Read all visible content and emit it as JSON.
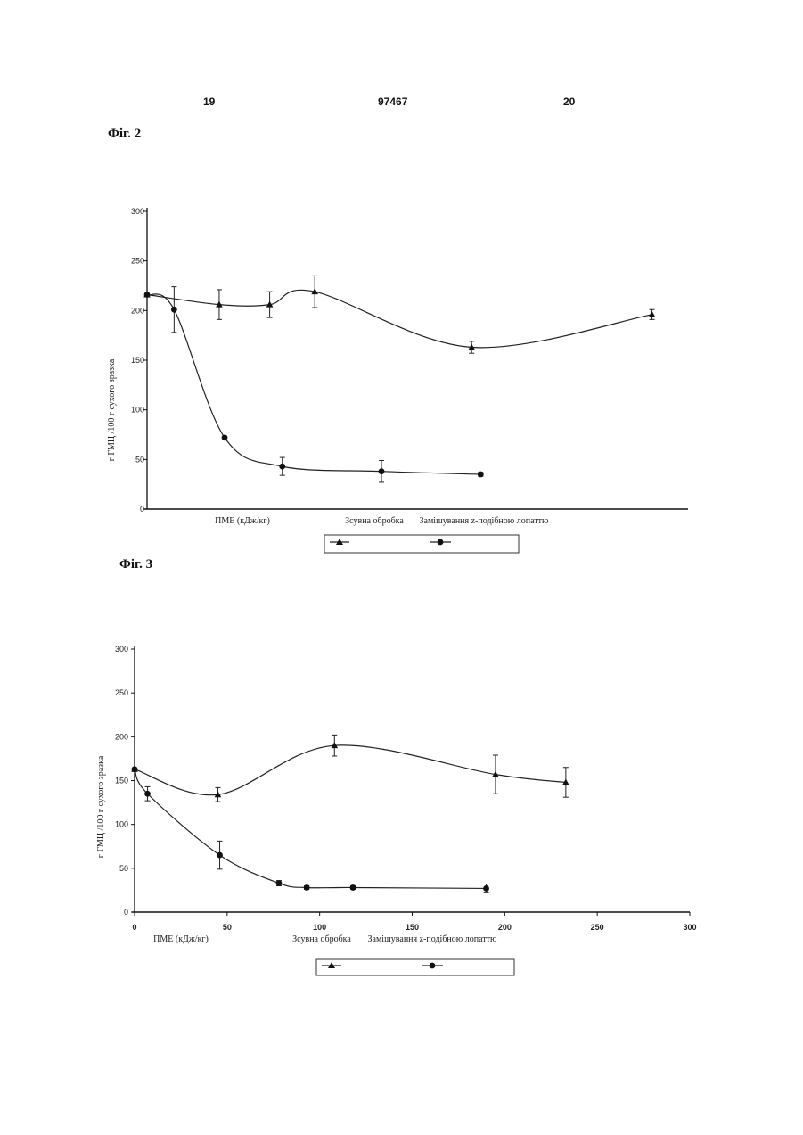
{
  "header": {
    "left_page": "19",
    "patent_no": "97467",
    "right_page": "20"
  },
  "charts": [
    {
      "fig_label": "Фіг. 2"
    },
    {
      "fig_label": "Фіг. 3"
    }
  ],
  "chart_data": [
    {
      "type": "line",
      "title": "",
      "xlabel": "ПМЕ (кДж/кг)",
      "ylabel": "г ГМЦ /100 г сухого зразка",
      "ylim": [
        0,
        300
      ],
      "yticks": [
        "0",
        "50",
        "100",
        "150",
        "200",
        "250",
        "300"
      ],
      "xticks": [],
      "xlim": [
        0,
        300
      ],
      "grid": false,
      "legend_position": "bottom",
      "series": [
        {
          "name": "Зсувна обробка",
          "marker": "triangle",
          "x": [
            0,
            40,
            68,
            93,
            180,
            280
          ],
          "y": [
            216,
            206,
            206,
            219,
            163,
            196
          ],
          "err": [
            0,
            15,
            13,
            16,
            6,
            5
          ]
        },
        {
          "name": "Замішування z-подібною лопаттю",
          "marker": "circle",
          "x": [
            0,
            15,
            43,
            75,
            130,
            185
          ],
          "y": [
            216,
            201,
            72,
            43,
            38,
            35
          ],
          "err": [
            0,
            23,
            0,
            9,
            11,
            2
          ]
        }
      ]
    },
    {
      "type": "line",
      "title": "",
      "xlabel": "ПМЕ (кДж/кг)",
      "ylabel": "г ГМЦ /100 г сухого зразка",
      "ylim": [
        0,
        300
      ],
      "yticks": [
        "0",
        "50",
        "100",
        "150",
        "200",
        "250",
        "300"
      ],
      "xlim": [
        0,
        300
      ],
      "xticks": [
        "0",
        "50",
        "100",
        "150",
        "200",
        "250",
        "300"
      ],
      "grid": false,
      "legend_position": "bottom",
      "series": [
        {
          "name": "Зсувна обробка",
          "marker": "triangle",
          "x": [
            0,
            45,
            108,
            195,
            233
          ],
          "y": [
            163,
            134,
            190,
            157,
            148
          ],
          "err": [
            0,
            8,
            12,
            22,
            17
          ]
        },
        {
          "name": "Замішування z-подібною лопаттю",
          "marker": "circle",
          "x": [
            0,
            7,
            46,
            78,
            93,
            118,
            190
          ],
          "y": [
            163,
            135,
            65,
            33,
            28,
            28,
            27
          ],
          "err": [
            0,
            8,
            16,
            3,
            2,
            2,
            5
          ]
        }
      ]
    }
  ]
}
